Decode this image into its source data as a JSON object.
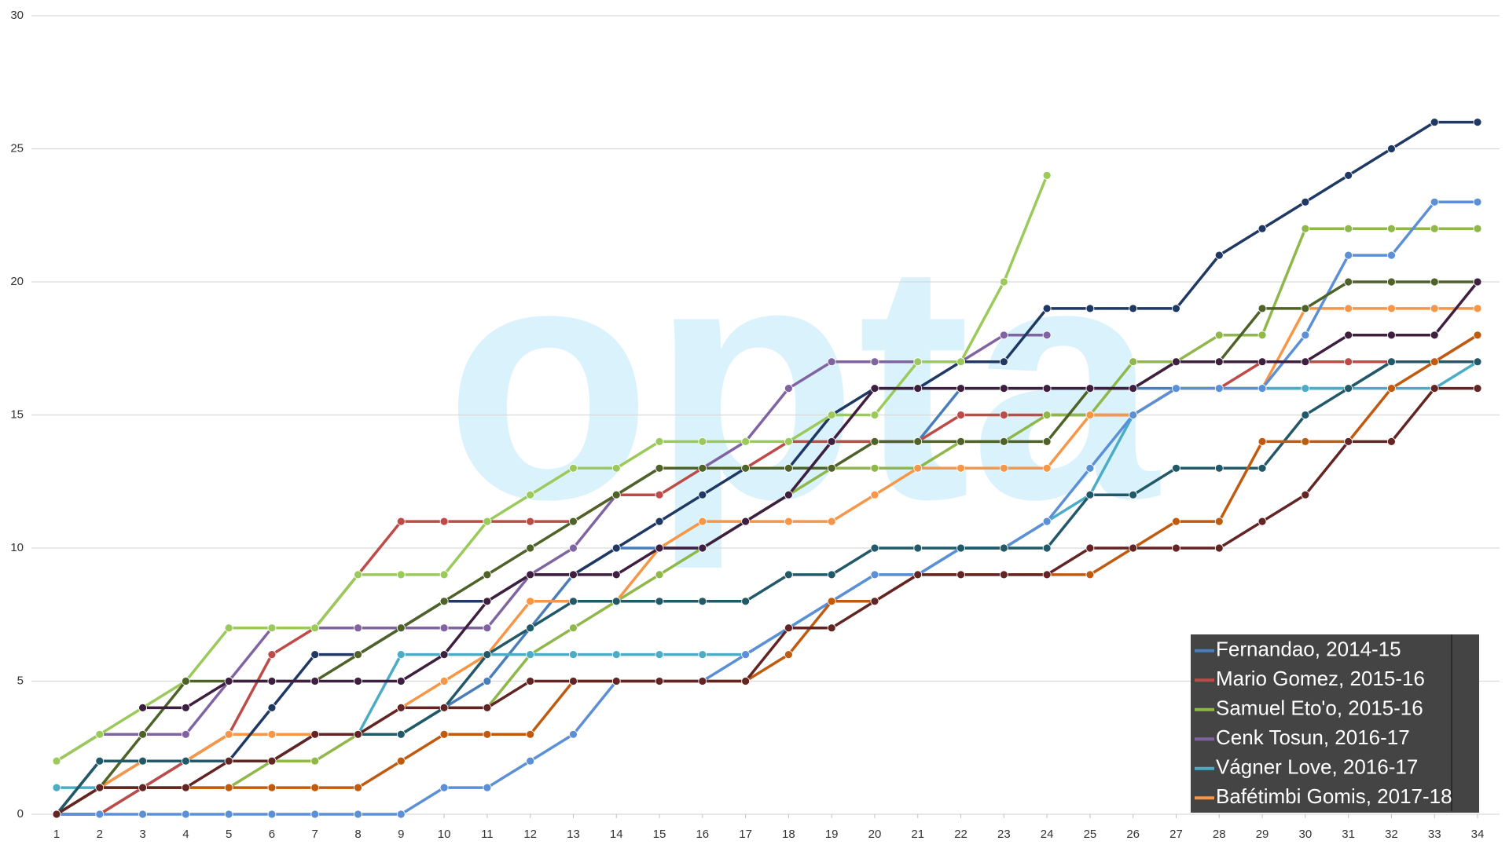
{
  "chart_data": {
    "type": "line",
    "watermark": "opta",
    "x": [
      1,
      2,
      3,
      4,
      5,
      6,
      7,
      8,
      9,
      10,
      11,
      12,
      13,
      14,
      15,
      16,
      17,
      18,
      19,
      20,
      21,
      22,
      23,
      24,
      25,
      26,
      27,
      28,
      29,
      30,
      31,
      32,
      33,
      34
    ],
    "xlim": [
      1,
      34
    ],
    "xticks": [
      1,
      2,
      3,
      4,
      5,
      6,
      7,
      8,
      9,
      10,
      11,
      12,
      13,
      14,
      15,
      16,
      17,
      18,
      19,
      20,
      21,
      22,
      23,
      24,
      25,
      26,
      27,
      28,
      29,
      30,
      31,
      32,
      33,
      34
    ],
    "ylim": [
      0,
      30
    ],
    "yticks": [
      0,
      5,
      10,
      15,
      20,
      25,
      30
    ],
    "grid": true,
    "legend": "lower right",
    "series": [
      {
        "name": "Fernandao, 2014-15",
        "color": "#4a7ebb",
        "values": [
          0,
          0,
          1,
          2,
          2,
          2,
          3,
          3,
          3,
          4,
          5,
          7,
          9,
          10,
          10,
          10,
          11,
          12,
          14,
          14,
          14,
          16,
          16,
          16,
          16,
          16,
          16,
          16,
          16,
          16,
          16,
          17,
          17,
          17
        ]
      },
      {
        "name": "Mario Gomez, 2015-16",
        "color": "#be4b48",
        "values": [
          0,
          0,
          1,
          2,
          3,
          6,
          7,
          9,
          11,
          11,
          11,
          11,
          11,
          12,
          12,
          13,
          13,
          14,
          14,
          14,
          14,
          15,
          15,
          15,
          15,
          15,
          16,
          16,
          17,
          17,
          17,
          17,
          17,
          18
        ]
      },
      {
        "name": "Samuel Eto'o, 2015-16",
        "color": "#8fb74a",
        "values": [
          0,
          1,
          1,
          1,
          1,
          2,
          2,
          3,
          3,
          4,
          4,
          6,
          7,
          8,
          9,
          10,
          11,
          12,
          13,
          13,
          13,
          14,
          14,
          15,
          15,
          17,
          17,
          18,
          18,
          22,
          22,
          22,
          22,
          22
        ]
      },
      {
        "name": "Cenk Tosun, 2016-17",
        "color": "#8064a2",
        "values": [
          2,
          3,
          3,
          3,
          5,
          7,
          7,
          7,
          7,
          7,
          7,
          9,
          10,
          12,
          13,
          13,
          14,
          16,
          17,
          17,
          17,
          17,
          18,
          18,
          null,
          null,
          null,
          null,
          null,
          null,
          null,
          null,
          null,
          null
        ]
      },
      {
        "name": "Vágner Love, 2016-17",
        "color": "#4bacc6",
        "values": [
          1,
          1,
          2,
          2,
          3,
          3,
          3,
          3,
          6,
          6,
          6,
          6,
          6,
          6,
          6,
          6,
          6,
          7,
          8,
          9,
          9,
          10,
          10,
          11,
          12,
          15,
          16,
          16,
          16,
          16,
          16,
          16,
          16,
          17
        ]
      },
      {
        "name": "Bafétimbi Gomis, 2017-18",
        "color": "#f79646",
        "values": [
          0,
          1,
          2,
          2,
          3,
          3,
          3,
          3,
          4,
          5,
          6,
          8,
          8,
          8,
          10,
          11,
          11,
          11,
          11,
          12,
          13,
          13,
          13,
          13,
          15,
          15,
          16,
          16,
          16,
          19,
          19,
          19,
          19,
          19
        ]
      },
      {
        "color": "#1f3864",
        "values": [
          0,
          2,
          2,
          2,
          2,
          4,
          6,
          6,
          7,
          8,
          8,
          9,
          9,
          10,
          11,
          12,
          13,
          13,
          15,
          16,
          16,
          17,
          17,
          19,
          19,
          19,
          19,
          21,
          22,
          23,
          24,
          25,
          26,
          26
        ]
      },
      {
        "color": "#9bc95a",
        "values": [
          2,
          3,
          4,
          5,
          7,
          7,
          7,
          9,
          9,
          9,
          11,
          12,
          13,
          13,
          14,
          14,
          14,
          14,
          15,
          15,
          17,
          17,
          20,
          24,
          null,
          null,
          null,
          null,
          null,
          null,
          null,
          null,
          null,
          null
        ]
      },
      {
        "color": "#5b8fd6",
        "values": [
          0,
          0,
          0,
          0,
          0,
          0,
          0,
          0,
          0,
          1,
          1,
          2,
          3,
          5,
          5,
          5,
          6,
          7,
          8,
          9,
          9,
          10,
          10,
          11,
          13,
          15,
          16,
          16,
          16,
          18,
          21,
          21,
          23,
          23
        ]
      },
      {
        "color": "#4f6228",
        "values": [
          0,
          1,
          3,
          5,
          5,
          5,
          5,
          6,
          7,
          8,
          9,
          10,
          11,
          12,
          13,
          13,
          13,
          13,
          13,
          14,
          14,
          14,
          14,
          14,
          16,
          16,
          17,
          17,
          19,
          19,
          20,
          20,
          20,
          20
        ]
      },
      {
        "color": "#3f1f3f",
        "values": [
          null,
          null,
          4,
          4,
          5,
          5,
          5,
          5,
          5,
          6,
          8,
          9,
          9,
          9,
          10,
          10,
          11,
          12,
          14,
          16,
          16,
          16,
          16,
          16,
          16,
          16,
          17,
          17,
          17,
          17,
          18,
          18,
          18,
          20
        ]
      },
      {
        "color": "#215968",
        "values": [
          0,
          2,
          2,
          2,
          2,
          2,
          3,
          3,
          3,
          4,
          6,
          7,
          8,
          8,
          8,
          8,
          8,
          9,
          9,
          10,
          10,
          10,
          10,
          10,
          12,
          12,
          13,
          13,
          13,
          15,
          16,
          17,
          17,
          17
        ]
      },
      {
        "color": "#c05a0f",
        "values": [
          0,
          1,
          1,
          1,
          1,
          1,
          1,
          1,
          2,
          3,
          3,
          3,
          5,
          5,
          5,
          5,
          5,
          6,
          8,
          8,
          9,
          9,
          9,
          9,
          9,
          10,
          11,
          11,
          14,
          14,
          14,
          16,
          17,
          18
        ]
      },
      {
        "color": "#632523",
        "values": [
          0,
          1,
          1,
          1,
          2,
          2,
          3,
          3,
          4,
          4,
          4,
          5,
          5,
          5,
          5,
          5,
          5,
          7,
          7,
          8,
          9,
          9,
          9,
          9,
          10,
          10,
          10,
          10,
          11,
          12,
          14,
          14,
          16,
          16
        ]
      }
    ]
  }
}
